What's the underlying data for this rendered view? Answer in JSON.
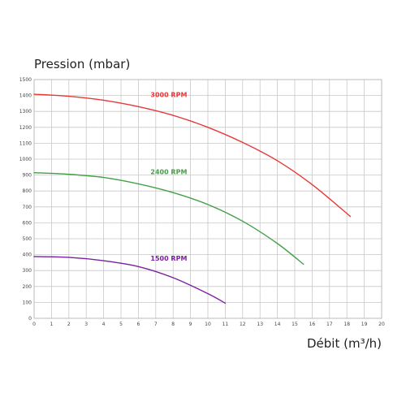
{
  "chart_data": {
    "type": "line",
    "title": "",
    "ylabel": "Pression (mbar)",
    "xlabel": "Débit (m³/h)",
    "xlim": [
      0,
      20
    ],
    "ylim": [
      0,
      1500
    ],
    "grid": true,
    "x_ticks": [
      "0",
      "1",
      "2",
      "3",
      "4",
      "5",
      "6",
      "7",
      "8",
      "9",
      "10",
      "11",
      "12",
      "13",
      "14",
      "15",
      "16",
      "17",
      "18",
      "19",
      "20"
    ],
    "y_ticks": [
      "0",
      "100",
      "200",
      "300",
      "400",
      "500",
      "600",
      "700",
      "800",
      "900",
      "1000",
      "1100",
      "1200",
      "1300",
      "1400",
      "1500"
    ],
    "series": [
      {
        "name": "3000 RPM",
        "color": "#e53935",
        "label_at": {
          "x": 6.7,
          "y": 1390
        },
        "x": [
          0,
          2,
          4,
          6,
          8,
          10,
          12,
          14,
          16,
          18.2
        ],
        "y": [
          1408,
          1395,
          1370,
          1330,
          1275,
          1200,
          1105,
          990,
          840,
          640
        ]
      },
      {
        "name": "2400 RPM",
        "color": "#43a047",
        "label_at": {
          "x": 6.7,
          "y": 905
        },
        "x": [
          0,
          2,
          4,
          6,
          8,
          10,
          12,
          14,
          15.5
        ],
        "y": [
          915,
          905,
          885,
          845,
          790,
          715,
          610,
          470,
          340
        ]
      },
      {
        "name": "1500 RPM",
        "color": "#7b1fa2",
        "label_at": {
          "x": 6.7,
          "y": 362
        },
        "x": [
          0,
          2,
          4,
          6,
          8,
          10,
          11
        ],
        "y": [
          388,
          383,
          362,
          325,
          255,
          155,
          95
        ]
      }
    ]
  }
}
